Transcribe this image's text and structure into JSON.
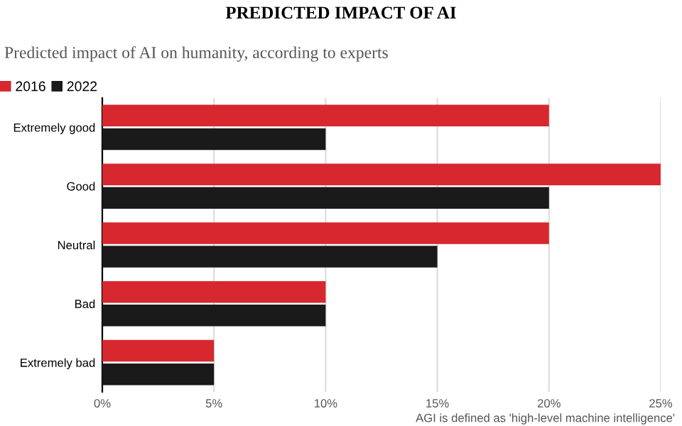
{
  "chart_data": {
    "type": "bar",
    "orientation": "horizontal",
    "title": "PREDICTED IMPACT OF AI",
    "subtitle": "Predicted impact of AI on humanity, according to experts",
    "categories": [
      "Extremely good",
      "Good",
      "Neutral",
      "Bad",
      "Extremely bad"
    ],
    "series": [
      {
        "name": "2016",
        "color": "#d7282f",
        "values": [
          20,
          25,
          20,
          10,
          5
        ]
      },
      {
        "name": "2022",
        "color": "#1a1a1a",
        "values": [
          10,
          20,
          15,
          10,
          5
        ]
      }
    ],
    "xlim": [
      0,
      25
    ],
    "xticks": [
      {
        "value": 0,
        "label": "0%"
      },
      {
        "value": 5,
        "label": "5%"
      },
      {
        "value": 10,
        "label": "10%"
      },
      {
        "value": 15,
        "label": "15%"
      },
      {
        "value": 20,
        "label": "20%"
      },
      {
        "value": 25,
        "label": "25%"
      }
    ],
    "grid": "x",
    "legend": "top left",
    "annotations": [
      "AGI is defined as 'high-level machine intelligence'"
    ]
  }
}
